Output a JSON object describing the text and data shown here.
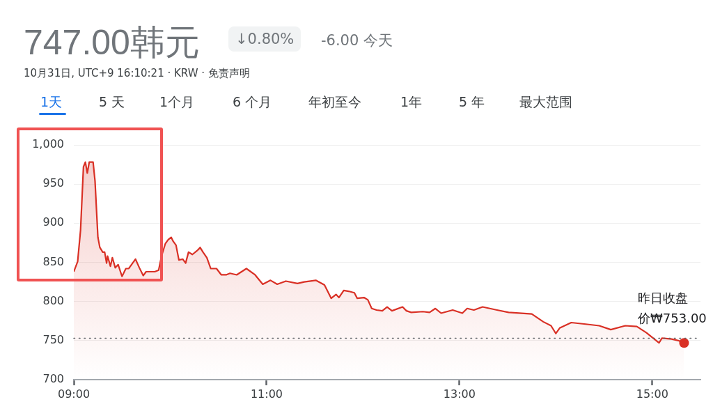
{
  "chart_data": {
    "type": "area",
    "title": "747.00韩元",
    "subtitle": "10月31日, UTC+9 16:10:21 · KRW · 免责声明",
    "annotations": [
      "↓0.80%",
      "-6.00 今天",
      "1天",
      "5 天",
      "1个月",
      "6 个月",
      "年初至今",
      "1年",
      "5 年",
      "最大范围"
    ],
    "xlim": [
      9,
      15.5
    ],
    "xticks": [
      {
        "value": 9,
        "label": "09:00"
      },
      {
        "value": 11,
        "label": "11:00"
      },
      {
        "value": 13,
        "label": "13:00"
      },
      {
        "value": 15,
        "label": "15:00"
      }
    ],
    "ylim": [
      700,
      1000
    ],
    "yticks": [
      {
        "value": 700,
        "label": "700"
      },
      {
        "value": 750,
        "label": "750"
      },
      {
        "value": 800,
        "label": "800"
      },
      {
        "value": 850,
        "label": "850"
      },
      {
        "value": 900,
        "label": "900"
      },
      {
        "value": 950,
        "label": "950"
      },
      {
        "value": 1000,
        "label": "1,000"
      }
    ],
    "grid": "y",
    "legend": false,
    "ref_lines": [
      {
        "axis": "y",
        "value": 753,
        "label": "昨日收盘价₩753.00",
        "line_style": "dotted",
        "color": "#5f6368"
      }
    ],
    "series": [
      {
        "color": "#d93025",
        "x": [
          9.0,
          9.04,
          9.07,
          9.1,
          9.12,
          9.14,
          9.16,
          9.2,
          9.22,
          9.25,
          9.27,
          9.3,
          9.32,
          9.34,
          9.35,
          9.38,
          9.4,
          9.43,
          9.46,
          9.5,
          9.54,
          9.57,
          9.61,
          9.64,
          9.68,
          9.72,
          9.75,
          9.8,
          9.84,
          9.88,
          9.91,
          9.95,
          9.98,
          10.01,
          10.03,
          10.06,
          10.09,
          10.13,
          10.16,
          10.19,
          10.23,
          10.28,
          10.31,
          10.34,
          10.38,
          10.42,
          10.48,
          10.53,
          10.58,
          10.62,
          10.69,
          10.79,
          10.88,
          10.96,
          11.04,
          11.11,
          11.2,
          11.32,
          11.39,
          11.51,
          11.6,
          11.67,
          11.72,
          11.75,
          11.8,
          11.85,
          11.91,
          11.94,
          12.01,
          12.05,
          12.09,
          12.14,
          12.2,
          12.25,
          12.3,
          12.41,
          12.45,
          12.5,
          12.62,
          12.69,
          12.75,
          12.81,
          12.93,
          13.03,
          13.08,
          13.15,
          13.24,
          13.39,
          13.51,
          13.75,
          13.87,
          13.95,
          14.0,
          14.04,
          14.16,
          14.31,
          14.45,
          14.57,
          14.72,
          14.84,
          14.94,
          15.07,
          15.1,
          15.2,
          15.27,
          15.33
        ],
        "values": [
          838,
          851,
          891,
          972,
          978,
          964,
          978,
          978,
          954,
          882,
          869,
          863,
          863,
          849,
          858,
          845,
          856,
          843,
          847,
          832,
          842,
          842,
          849,
          854,
          843,
          833,
          838,
          838,
          838,
          840,
          858,
          874,
          879,
          882,
          877,
          872,
          853,
          854,
          849,
          863,
          860,
          865,
          869,
          863,
          856,
          842,
          842,
          834,
          834,
          836,
          834,
          842,
          834,
          822,
          827,
          822,
          826,
          823,
          825,
          827,
          821,
          804,
          809,
          805,
          814,
          813,
          811,
          804,
          805,
          802,
          791,
          789,
          788,
          793,
          788,
          793,
          788,
          786,
          787,
          786,
          791,
          785,
          789,
          785,
          791,
          789,
          793,
          789,
          786,
          784,
          774,
          769,
          759,
          766,
          773,
          771,
          769,
          764,
          769,
          768,
          760,
          747,
          753,
          752,
          750,
          747
        ]
      }
    ]
  }
}
